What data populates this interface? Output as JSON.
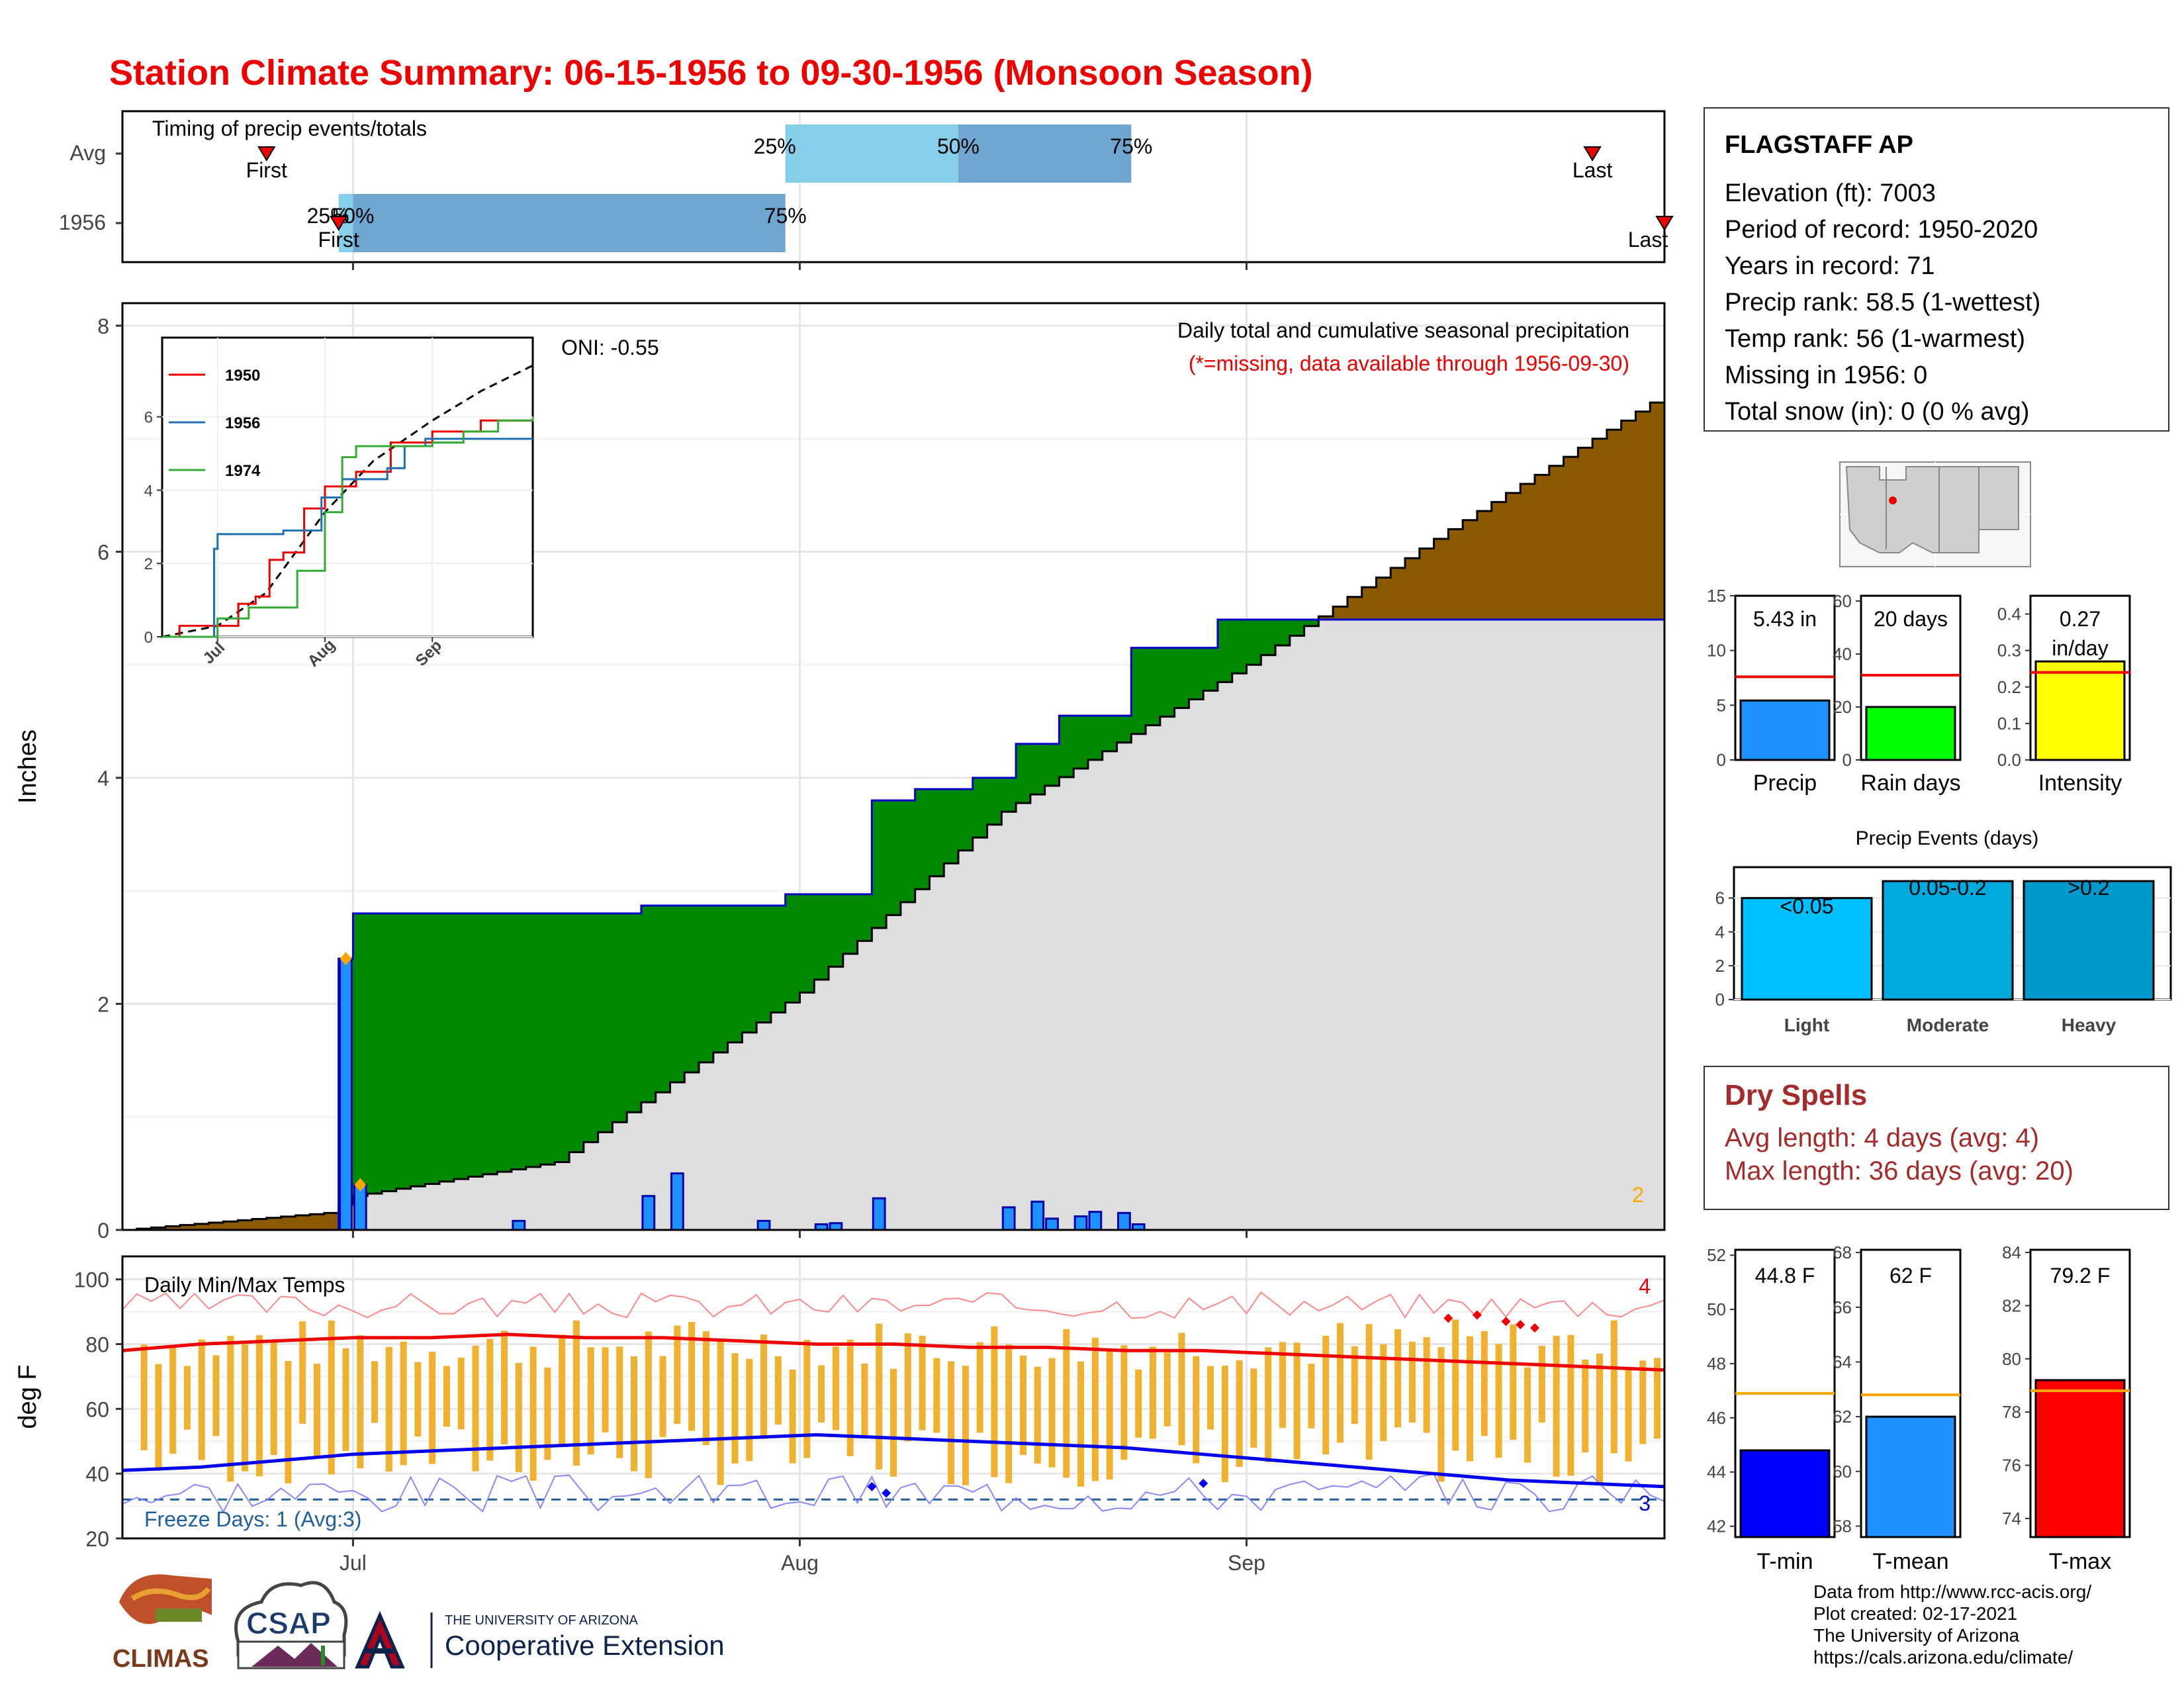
{
  "title": "Station Climate Summary: 06-15-1956 to 09-30-1956 (Monsoon Season)",
  "colors": {
    "title": "#ee0000",
    "brown": "#8b5a00",
    "green": "#008800",
    "gray": "#dedede",
    "daily_bar": "#1e90ff",
    "tmin": "#0000ee",
    "tmax": "#ee0000",
    "tbar": "#f0b030",
    "light": "#00bfff",
    "moderate": "#00aadd",
    "heavy": "#0099cc",
    "dry": "#a52a2a"
  },
  "timing": {
    "label": "Timing of precip events/totals",
    "rows": [
      "Avg",
      "1956"
    ],
    "avg": {
      "first": "Jun 25",
      "q25": "Jul 31",
      "q50": "Aug 12",
      "q75": "Aug 24",
      "last": "Sep 25"
    },
    "y1956": {
      "first": "Jun 30",
      "q25": "Jun 30",
      "q50": "Jul 1",
      "q75": "Jul 31",
      "last": "Sep 30"
    },
    "labels": {
      "first": "First",
      "last": "Last",
      "q25": "25%",
      "q50": "50%",
      "q75": "75%"
    }
  },
  "main": {
    "ylabel": "Inches",
    "yticks": [
      0,
      2,
      4,
      6,
      8
    ],
    "oni": "ONI: -0.55",
    "subtitle": "Daily total and cumulative seasonal precipitation",
    "missing_note": "(*=missing, data available through 1956-09-30)",
    "missing_count": "2"
  },
  "chart_data": {
    "type": "area",
    "x_unit": "date",
    "series": [
      {
        "name": "1956 cumulative",
        "x": [
          "1956-06-15",
          "1956-06-29",
          "1956-06-30",
          "1956-07-01",
          "1956-07-20",
          "1956-07-21",
          "1956-07-30",
          "1956-07-31",
          "1956-08-06",
          "1956-08-09",
          "1956-08-13",
          "1956-08-16",
          "1956-08-19",
          "1956-08-24",
          "1956-08-30",
          "1956-09-30"
        ],
        "values": [
          0,
          0,
          2.4,
          2.8,
          2.8,
          2.87,
          2.87,
          2.97,
          3.8,
          3.9,
          4.0,
          4.3,
          4.55,
          5.15,
          5.4,
          5.4
        ]
      },
      {
        "name": "Avg cumulative",
        "x": [
          "1956-06-15",
          "1956-06-29",
          "1956-07-01",
          "1956-07-15",
          "1956-08-01",
          "1956-08-15",
          "1956-09-01",
          "1956-09-15",
          "1956-09-30"
        ],
        "values": [
          0,
          0.15,
          0.3,
          0.6,
          2.1,
          3.7,
          5.0,
          6.2,
          7.4
        ]
      }
    ],
    "daily_bars": [
      {
        "x": "1956-06-30",
        "value": 2.4
      },
      {
        "x": "1956-07-01",
        "value": 0.4
      },
      {
        "x": "1956-07-12",
        "value": 0.08
      },
      {
        "x": "1956-07-21",
        "value": 0.3
      },
      {
        "x": "1956-07-23",
        "value": 0.5
      },
      {
        "x": "1956-07-29",
        "value": 0.08
      },
      {
        "x": "1956-08-02",
        "value": 0.05
      },
      {
        "x": "1956-08-03",
        "value": 0.06
      },
      {
        "x": "1956-08-06",
        "value": 0.28
      },
      {
        "x": "1956-08-15",
        "value": 0.2
      },
      {
        "x": "1956-08-17",
        "value": 0.25
      },
      {
        "x": "1956-08-18",
        "value": 0.1
      },
      {
        "x": "1956-08-20",
        "value": 0.12
      },
      {
        "x": "1956-08-21",
        "value": 0.16
      },
      {
        "x": "1956-08-23",
        "value": 0.15
      },
      {
        "x": "1956-08-24",
        "value": 0.05
      }
    ],
    "ylim": [
      0,
      8.2
    ]
  },
  "inset": {
    "legend": [
      "1950",
      "1956",
      "1974"
    ],
    "xticks": [
      "Jul",
      "Aug",
      "Sep"
    ],
    "yticks": [
      0,
      2,
      4,
      6
    ]
  },
  "temps": {
    "label": "Daily Min/Max Temps",
    "ylabel": "deg F",
    "yticks": [
      20,
      40,
      60,
      80,
      100
    ],
    "freeze": "Freeze Days: 1 (Avg:3)",
    "hot_count": "4",
    "cold_count": "3",
    "xticks": [
      "Jul",
      "Aug",
      "Sep"
    ],
    "tmax_avg": [
      78,
      80,
      81,
      82,
      82,
      83,
      82,
      82,
      81,
      80,
      80,
      79,
      79,
      78,
      78,
      77,
      76,
      75,
      74,
      73,
      72
    ],
    "tmin_avg": [
      41,
      42,
      44,
      46,
      47,
      48,
      49,
      50,
      51,
      52,
      51,
      50,
      49,
      48,
      46,
      44,
      42,
      40,
      38,
      37,
      36
    ]
  },
  "station": {
    "name": "FLAGSTAFF AP",
    "elevation": "Elevation (ft): 7003",
    "period": "Period of record: 1950-2020",
    "years": "Years in record: 71",
    "precip_rank": "Precip rank: 58.5 (1-wettest)",
    "temp_rank": "Temp rank: 56 (1-warmest)",
    "missing": "Missing in 1956: 0",
    "snow": "Total snow (in): 0 (0 % avg)"
  },
  "mini_bars": [
    {
      "label": "Precip",
      "value_text": "5.43 in",
      "value": 5.43,
      "avg": 7.6,
      "yticks": [
        0,
        5,
        10,
        15
      ],
      "ymax": 15,
      "color": "#1e90ff"
    },
    {
      "label": "Rain days",
      "value_text": "20 days",
      "value": 20,
      "avg": 32,
      "yticks": [
        0,
        20,
        40,
        60
      ],
      "ymax": 62,
      "color": "#00ff00"
    },
    {
      "label": "Intensity",
      "value_text_1": "0.27",
      "value_text_2": "in/day",
      "value": 0.27,
      "avg": 0.24,
      "yticks": [
        "0.0",
        "0.1",
        "0.2",
        "0.3",
        "0.4"
      ],
      "ymax": 0.45,
      "color": "#ffff00"
    }
  ],
  "events": {
    "title": "Precip Events (days)",
    "yticks": [
      0,
      2,
      4,
      6
    ],
    "bars": [
      {
        "label": "Light",
        "range": "<0.05",
        "value": 6
      },
      {
        "label": "Moderate",
        "range": "0.05-0.2",
        "value": 7
      },
      {
        "label": "Heavy",
        "range": ">0.2",
        "value": 7
      }
    ]
  },
  "dry": {
    "title": "Dry Spells",
    "avg": "Avg length: 4 days (avg: 4)",
    "max": "Max length: 36 days (avg: 20)"
  },
  "temp_bars": [
    {
      "label": "T-min",
      "value_text": "44.8 F",
      "value": 44.8,
      "avg": 46.9,
      "ymin": 41.6,
      "ymax": 52.2,
      "yticks": [
        42,
        44,
        46,
        48,
        50,
        52
      ],
      "color": "#0000ff"
    },
    {
      "label": "T-mean",
      "value_text": "62 F",
      "value": 62.0,
      "avg": 62.8,
      "ymin": 57.6,
      "ymax": 68.1,
      "yticks": [
        58,
        60,
        62,
        64,
        66,
        68
      ],
      "color": "#1e90ff"
    },
    {
      "label": "T-max",
      "value_text": "79.2 F",
      "value": 79.2,
      "avg": 78.8,
      "ymin": 73.3,
      "ymax": 84.1,
      "yticks": [
        74,
        76,
        78,
        80,
        82,
        84
      ],
      "color": "#ff0000"
    }
  ],
  "credits": [
    "Data from http://www.rcc-acis.org/",
    "Plot created: 02-17-2021",
    "The University of Arizona",
    "https://cals.arizona.edu/climate/"
  ],
  "logos": {
    "climas": "CLIMAS",
    "csap": "CSAP",
    "ua_line1": "THE UNIVERSITY OF ARIZONA",
    "ua_line2": "Cooperative Extension"
  }
}
